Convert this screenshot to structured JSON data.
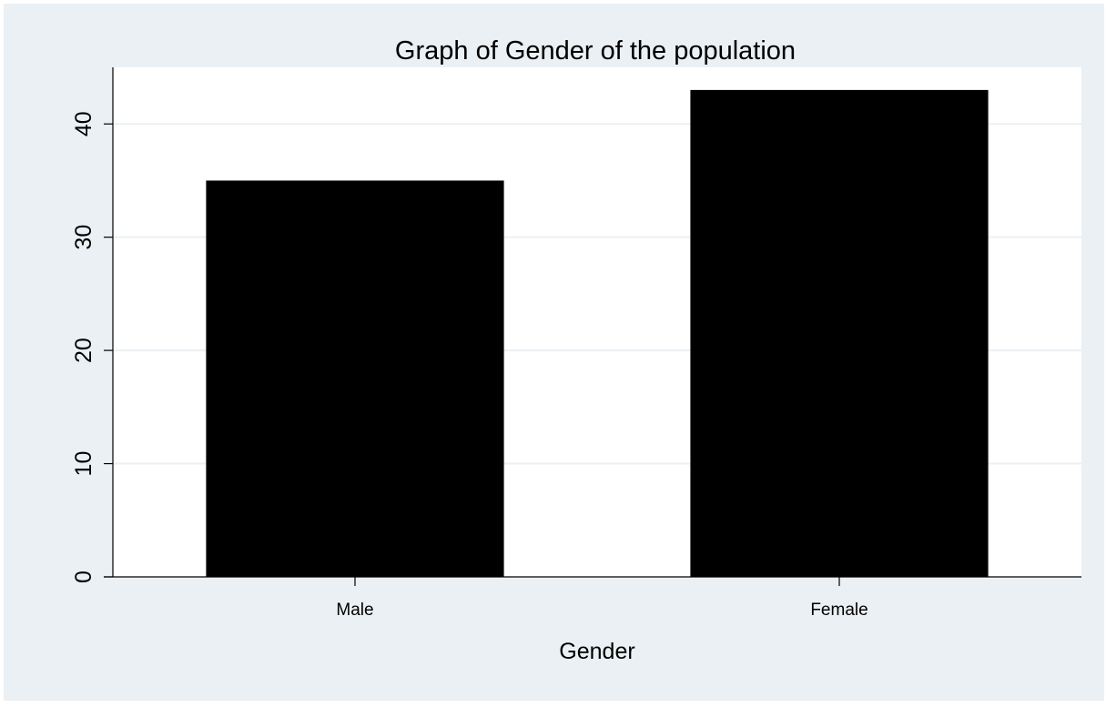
{
  "chart_data": {
    "type": "bar",
    "title": "Graph of Gender of the population",
    "xlabel": "Gender",
    "ylabel": "",
    "categories": [
      "Male",
      "Female"
    ],
    "values": [
      35,
      43
    ],
    "ylim": [
      0,
      45
    ],
    "yticks": [
      "0",
      "10",
      "20",
      "30",
      "40"
    ],
    "grid": true,
    "legend": "none",
    "colors": {
      "outer_background": "#eaf0f3",
      "plot_background": "#ffffff",
      "bar": "#000000",
      "grid": "#eaf0f3",
      "axis": "#000000"
    }
  }
}
